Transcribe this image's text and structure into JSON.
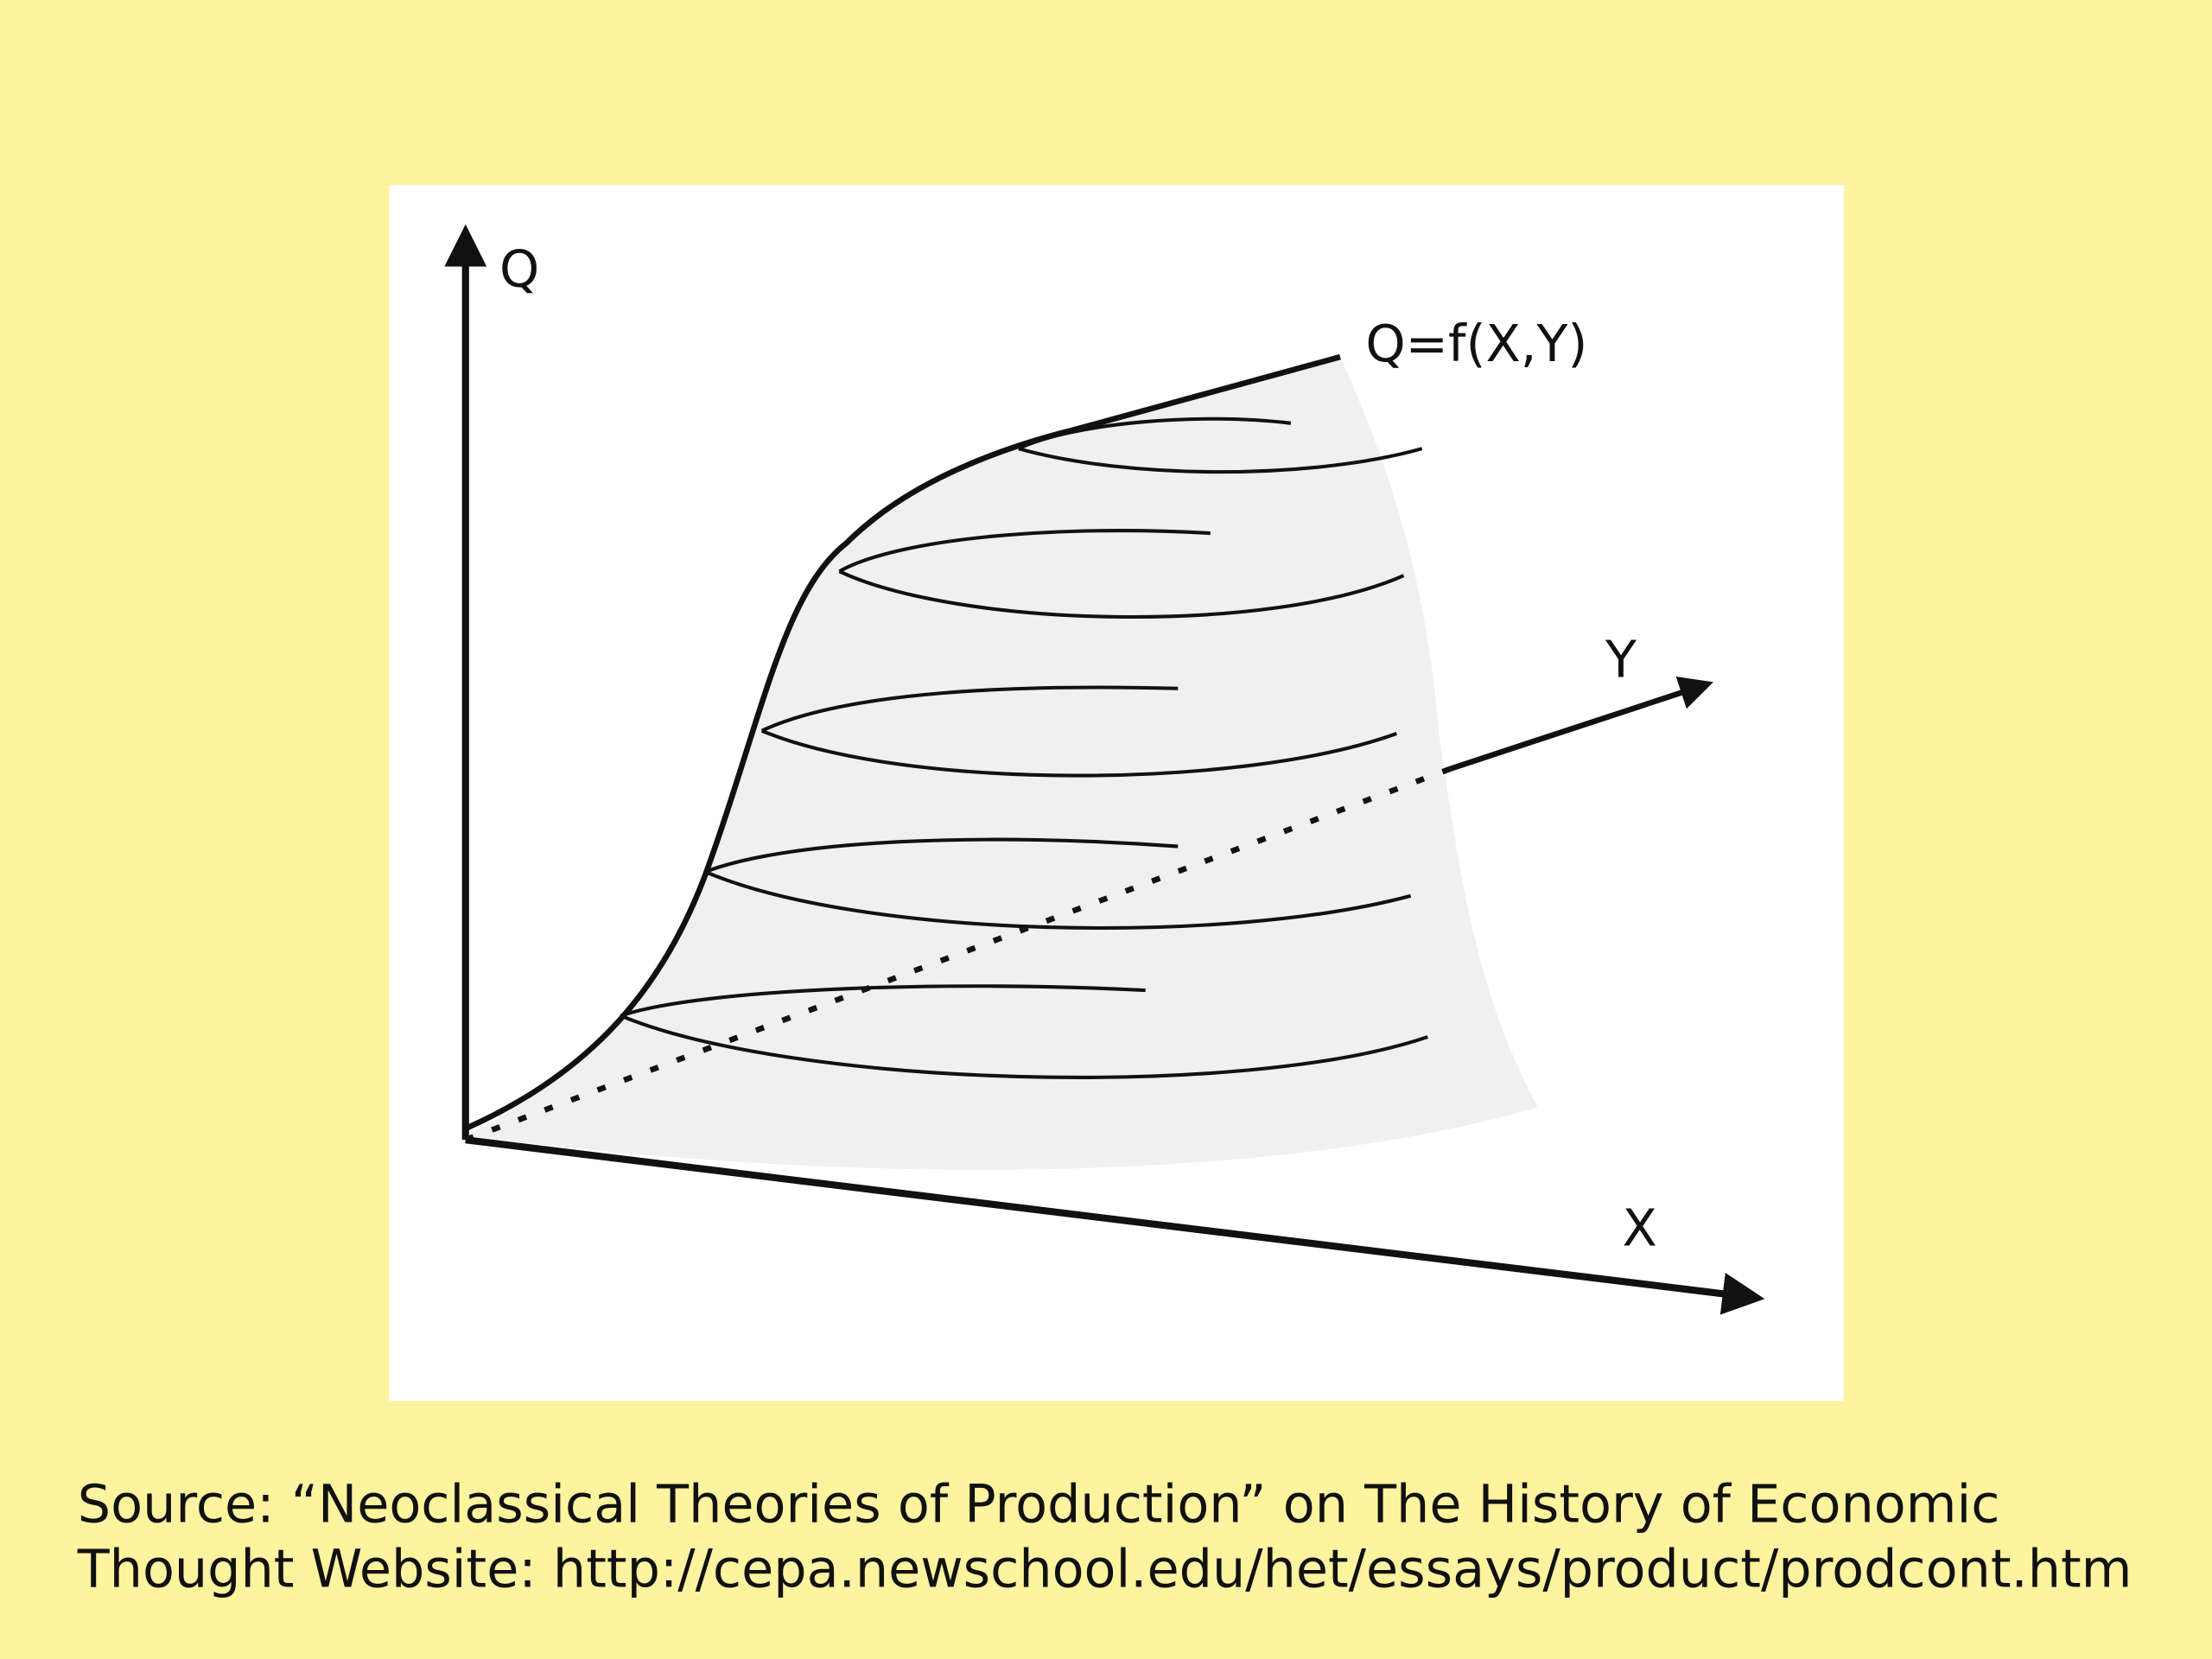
{
  "diagram": {
    "axis_labels": {
      "q": "Q",
      "y": "Y",
      "x": "X"
    },
    "function_label": "Q=f(X,Y)"
  },
  "source": {
    "lines": [
      "Source: “Neoclassical Theories of Production” on The History of Economic",
      "Thought Website: http://cepa.newschool.edu/het/essays/product/prodcont.htm"
    ]
  }
}
